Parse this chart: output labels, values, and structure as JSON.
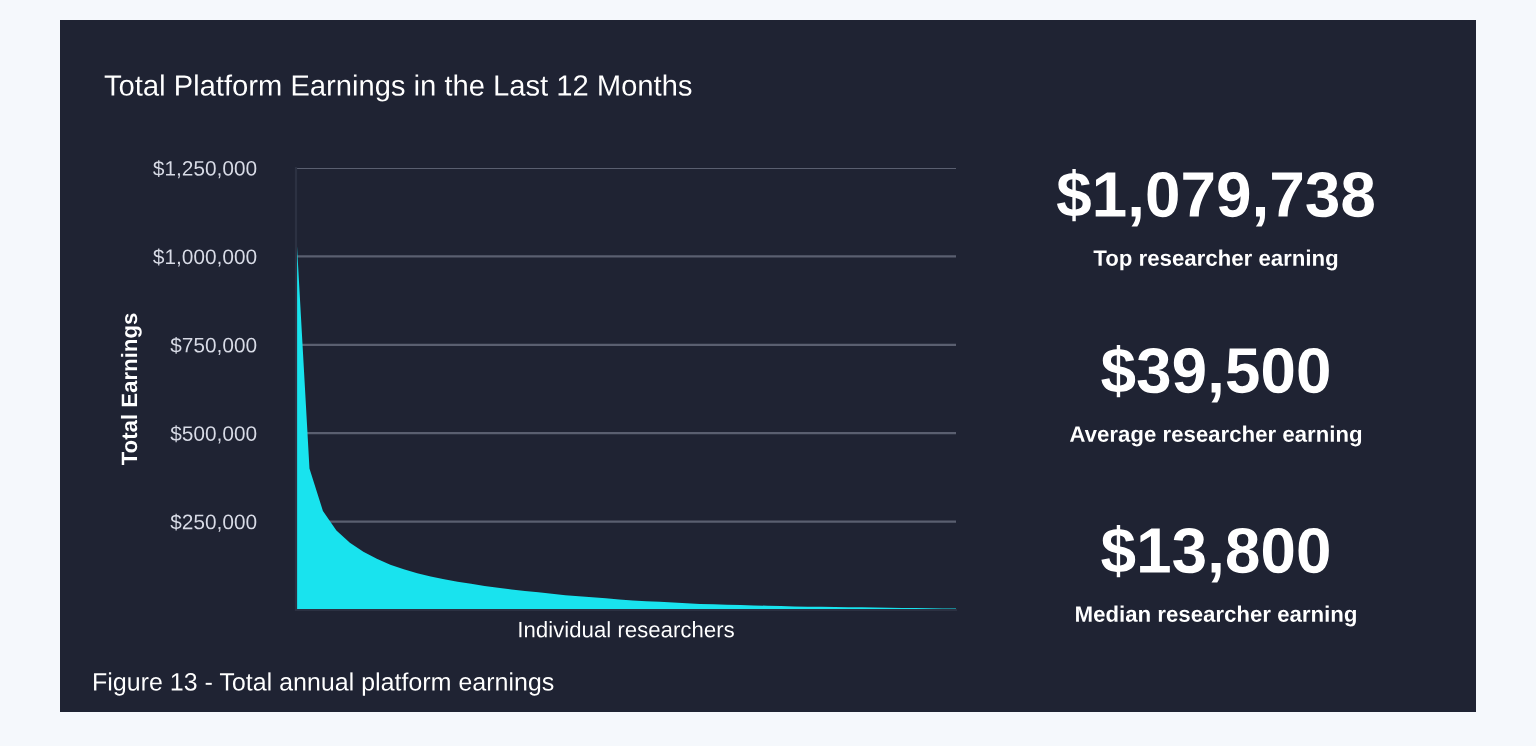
{
  "chart_data": [
    {
      "type": "area",
      "title": "Total Platform Earnings in the Last 12 Months",
      "xlabel": "Individual researchers",
      "ylabel": "Total Earnings",
      "categories": [
        null,
        null,
        null,
        null,
        null,
        null,
        null,
        null,
        null,
        null,
        null,
        null,
        null,
        null,
        null,
        null,
        null,
        null,
        null,
        null,
        null,
        null,
        null,
        null,
        null,
        null,
        null,
        null,
        null,
        null,
        null,
        null,
        null,
        null,
        null,
        null,
        null,
        null,
        null,
        null,
        null,
        null,
        null,
        null,
        null,
        null,
        null,
        null,
        null,
        null
      ],
      "series": [
        {
          "color": "#19e3ee",
          "values": [
            1079738,
            400000,
            280000,
            225000,
            190000,
            165000,
            145000,
            128000,
            115000,
            104000,
            95000,
            87000,
            80000,
            74000,
            68000,
            63000,
            58000,
            54000,
            50000,
            46000,
            42000,
            39000,
            36000,
            33000,
            30000,
            27000,
            25000,
            23000,
            21000,
            19000,
            17000,
            16000,
            15000,
            14000,
            13000,
            12000,
            11000,
            10000,
            9500,
            9000,
            8500,
            8000,
            7500,
            7000,
            6500,
            6000,
            5500,
            5000,
            4500,
            4000
          ]
        }
      ],
      "ylim": [
        0,
        1250000
      ],
      "yticks": [
        {
          "value": 250000,
          "label": "$250,000"
        },
        {
          "value": 500000,
          "label": "$500,000"
        },
        {
          "value": 750000,
          "label": "$750,000"
        },
        {
          "value": 1000000,
          "label": "$1,000,000"
        },
        {
          "value": 1250000,
          "label": "$1,250,000"
        }
      ],
      "grid": "y",
      "tick_labels": "y",
      "annotations": [
        "Figure 13 - Total annual platform earnings"
      ]
    },
    {
      "type": "other",
      "annotations": [
        "$1,079,738",
        "Top researcher earning",
        "$39,500",
        "Average researcher earning",
        "$13,800",
        "Median researcher earning"
      ]
    }
  ]
}
